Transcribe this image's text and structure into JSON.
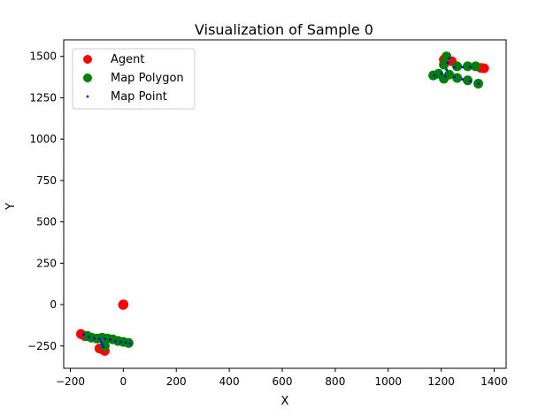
{
  "chart_data": {
    "type": "scatter",
    "title": "Visualization of Sample 0",
    "xlabel": "X",
    "ylabel": "Y",
    "xlim": [
      -225,
      1445
    ],
    "ylim": [
      -385,
      1600
    ],
    "xticks": [
      -200,
      0,
      200,
      400,
      600,
      800,
      1000,
      1200,
      1400
    ],
    "yticks": [
      -250,
      0,
      250,
      500,
      750,
      1000,
      1250,
      1500
    ],
    "xtick_labels": [
      "−200",
      "0",
      "200",
      "400",
      "600",
      "800",
      "1000",
      "1200",
      "1400"
    ],
    "ytick_labels": [
      "−250",
      "0",
      "250",
      "500",
      "750",
      "1000",
      "1250",
      "1500"
    ],
    "grid": false,
    "legend_position": "upper-left",
    "series": [
      {
        "name": "Agent",
        "color": "#ff0000",
        "marker": "circle",
        "points": [
          [
            0,
            0
          ],
          [
            -1,
            -2
          ],
          [
            1,
            1
          ],
          [
            -160,
            -178
          ],
          [
            -145,
            -190
          ],
          [
            -80,
            -270
          ],
          [
            -70,
            -280
          ],
          [
            -90,
            -265
          ],
          [
            1220,
            1485
          ],
          [
            1240,
            1470
          ],
          [
            1362,
            1428
          ],
          [
            1210,
            1480
          ],
          [
            1350,
            1430
          ]
        ]
      },
      {
        "name": "Map Polygon",
        "color": "#008000",
        "marker": "circle",
        "points": [
          [
            -135,
            -190
          ],
          [
            -120,
            -200
          ],
          [
            -100,
            -205
          ],
          [
            -80,
            -200
          ],
          [
            -60,
            -205
          ],
          [
            -40,
            -210
          ],
          [
            -20,
            -220
          ],
          [
            0,
            -225
          ],
          [
            20,
            -232
          ],
          [
            -70,
            -250
          ],
          [
            1170,
            1385
          ],
          [
            1190,
            1395
          ],
          [
            1210,
            1450
          ],
          [
            1220,
            1500
          ],
          [
            1260,
            1440
          ],
          [
            1300,
            1440
          ],
          [
            1330,
            1440
          ],
          [
            1340,
            1335
          ],
          [
            1300,
            1355
          ],
          [
            1260,
            1370
          ],
          [
            1230,
            1390
          ],
          [
            1210,
            1365
          ]
        ]
      },
      {
        "name": "Map Point",
        "color": "#0000ff",
        "marker": "dot",
        "points": [
          [
            -150,
            -180
          ],
          [
            -130,
            -195
          ],
          [
            -110,
            -203
          ],
          [
            -90,
            -206
          ],
          [
            -70,
            -208
          ],
          [
            -50,
            -212
          ],
          [
            -30,
            -220
          ],
          [
            -10,
            -226
          ],
          [
            10,
            -230
          ],
          [
            25,
            -235
          ],
          [
            -80,
            -240
          ],
          [
            -75,
            -255
          ],
          [
            -85,
            -225
          ],
          [
            1175,
            1385
          ],
          [
            1200,
            1395
          ],
          [
            1220,
            1420
          ],
          [
            1225,
            1460
          ],
          [
            1230,
            1490
          ],
          [
            1250,
            1435
          ],
          [
            1280,
            1435
          ],
          [
            1310,
            1435
          ],
          [
            1340,
            1335
          ],
          [
            1310,
            1350
          ],
          [
            1280,
            1362
          ],
          [
            1250,
            1375
          ],
          [
            1215,
            1380
          ]
        ]
      }
    ]
  }
}
